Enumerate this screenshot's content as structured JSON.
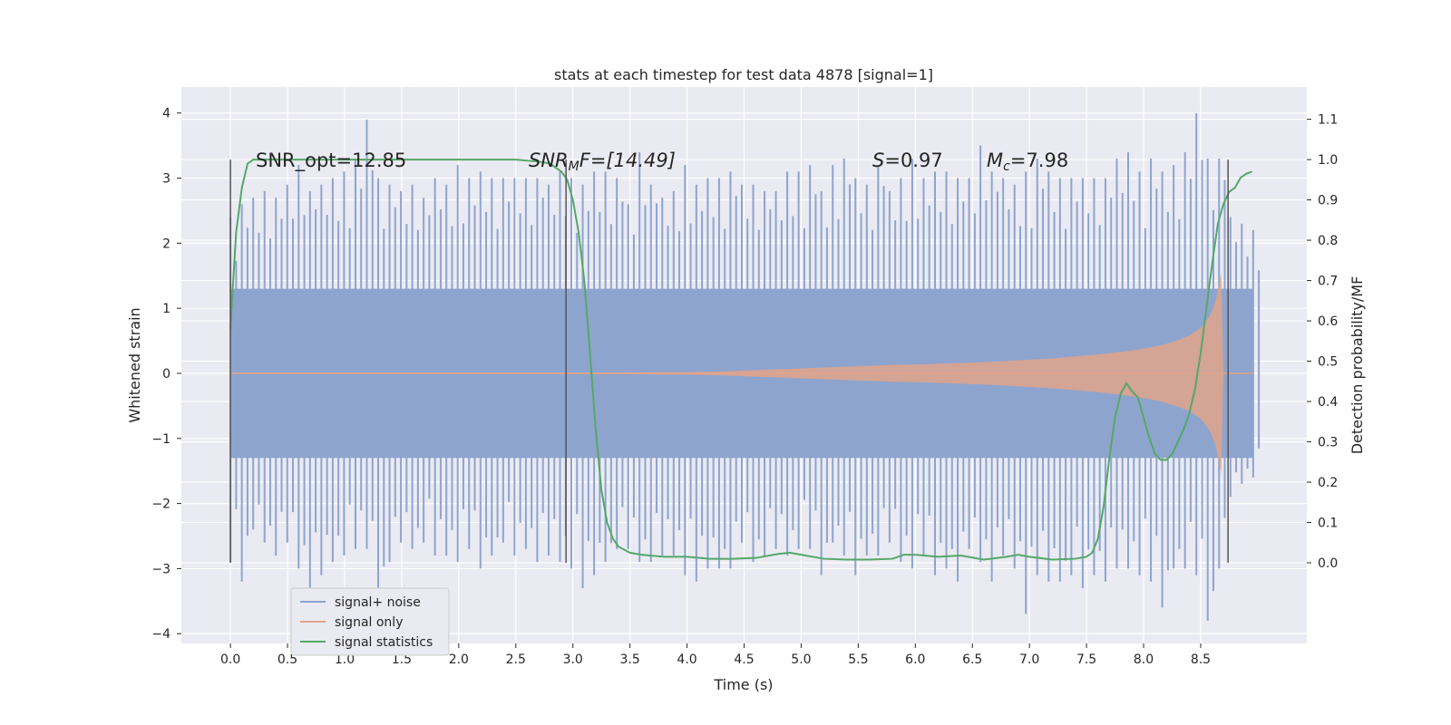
{
  "chart_data": {
    "type": "line",
    "title": "stats at each timestep for test data 4878 [signal=1]",
    "xlabel": "Time (s)",
    "ylabel": "Whitened strain",
    "y2label": "Detection probability/MF",
    "xlim": [
      -0.43,
      9.43
    ],
    "ylim": [
      -4.15,
      4.4
    ],
    "y2lim": [
      -0.2,
      1.18
    ],
    "xticks": [
      "0.0",
      "0.5",
      "1.0",
      "1.5",
      "2.0",
      "2.5",
      "3.0",
      "3.5",
      "4.0",
      "4.5",
      "5.0",
      "5.5",
      "6.0",
      "6.5",
      "7.0",
      "7.5",
      "8.0",
      "8.5"
    ],
    "xtick_values": [
      0,
      0.5,
      1,
      1.5,
      2,
      2.5,
      3,
      3.5,
      4,
      4.5,
      5,
      5.5,
      6,
      6.5,
      7,
      7.5,
      8,
      8.5
    ],
    "yticks": [
      "4",
      "3",
      "2",
      "1",
      "0",
      "−1",
      "−2",
      "−3",
      "−4"
    ],
    "ytick_values": [
      4,
      3,
      2,
      1,
      0,
      -1,
      -2,
      -3,
      -4
    ],
    "y2ticks": [
      "1.1",
      "1.0",
      "0.9",
      "0.8",
      "0.7",
      "0.6",
      "0.5",
      "0.4",
      "0.3",
      "0.2",
      "0.1",
      "0.0"
    ],
    "y2tick_values": [
      1.1,
      1.0,
      0.9,
      0.8,
      0.7,
      0.6,
      0.5,
      0.4,
      0.3,
      0.2,
      0.1,
      0.0
    ],
    "grid": true,
    "legend_position": "bottom-left",
    "annotations": {
      "snr_opt": "SNR_opt=12.85",
      "snr_mf_label": "SNR",
      "snr_mf_sub": "M",
      "snr_mf_rest": "F=[14.49]",
      "s_label": "S",
      "s_rest": "=0.97",
      "mc_label": "M",
      "mc_sub": "c",
      "mc_rest": "=7.98"
    },
    "vertical_markers": [
      0.0,
      2.94,
      8.74
    ],
    "noise": {
      "t_start": 0.0,
      "t_end": 8.96,
      "band": [
        -1.3,
        1.3
      ],
      "max": [
        2.4,
        2.6,
        2.7,
        2.8,
        2.7,
        2.9,
        3.2,
        2.8,
        2.9,
        3.0,
        3.1,
        3.3,
        3.9,
        3.0,
        2.9,
        2.8,
        2.9,
        2.7,
        3.0,
        2.9,
        3.2,
        3.0,
        3.1,
        3.0,
        3.0,
        3.0,
        3.0,
        3.0,
        2.9,
        3.1,
        3.0,
        2.9,
        3.1,
        3.1,
        3.0,
        2.6,
        3.4,
        2.9,
        2.7,
        2.8,
        3.2,
        2.9,
        3.0,
        3.0,
        3.1,
        2.9,
        2.9,
        2.8,
        2.8,
        3.1,
        3.1,
        3.2,
        2.8,
        3.2,
        3.3,
        3.0,
        2.9,
        3.2,
        2.8,
        3.0,
        3.3,
        3.0,
        3.1,
        3.1,
        3.0,
        3.0,
        3.5,
        3.1,
        3.0,
        2.9,
        3.1,
        3.3,
        3.1,
        3.0,
        3.0,
        3.0,
        3.0,
        3.0,
        3.3,
        3.4,
        3.1,
        3.3,
        3.1,
        3.2,
        3.4,
        4.0,
        3.3,
        3.3,
        2.4,
        2.3,
        2.2
      ],
      "min": [
        -2.9,
        -3.2,
        -2.4,
        -2.6,
        -2.8,
        -2.6,
        -3.0,
        -3.3,
        -3.1,
        -2.9,
        -2.8,
        -2.7,
        -2.7,
        -3.3,
        -2.9,
        -2.6,
        -2.7,
        -2.6,
        -2.8,
        -2.8,
        -2.9,
        -2.7,
        -3.0,
        -2.8,
        -2.6,
        -2.8,
        -2.7,
        -2.9,
        -2.8,
        -2.9,
        -3.0,
        -3.3,
        -3.1,
        -2.9,
        -2.7,
        -2.7,
        -2.9,
        -2.9,
        -2.8,
        -2.8,
        -3.1,
        -3.2,
        -3.0,
        -3.0,
        -3.0,
        -2.6,
        -2.9,
        -2.8,
        -2.7,
        -2.8,
        -2.7,
        -2.7,
        -3.1,
        -2.6,
        -2.8,
        -3.1,
        -2.8,
        -2.8,
        -2.6,
        -2.9,
        -3.0,
        -2.8,
        -3.1,
        -3.0,
        -3.2,
        -2.7,
        -2.9,
        -3.2,
        -2.8,
        -3.0,
        -3.7,
        -3.1,
        -3.2,
        -3.2,
        -3.1,
        -3.3,
        -3.1,
        -3.2,
        -3.0,
        -3.0,
        -3.1,
        -3.2,
        -3.6,
        -3.0,
        -3.0,
        -3.1,
        -3.8,
        -3.0,
        -1.9,
        -1.7,
        -1.6
      ]
    },
    "series": [
      {
        "name": "signal+ noise",
        "color": "#8da4ce"
      },
      {
        "name": "signal only",
        "color": "#e1a48a",
        "x": [
          0.0,
          0.5,
          1.0,
          1.5,
          2.0,
          2.5,
          3.0,
          3.5,
          4.0,
          4.3,
          4.6,
          4.9,
          5.2,
          5.5,
          5.8,
          6.1,
          6.4,
          6.7,
          7.0,
          7.2,
          7.4,
          7.6,
          7.8,
          8.0,
          8.15,
          8.3,
          8.4,
          8.5,
          8.58,
          8.63,
          8.66,
          8.68,
          8.7
        ],
        "amplitude": [
          0.01,
          0.01,
          0.01,
          0.01,
          0.01,
          0.01,
          0.01,
          0.015,
          0.02,
          0.03,
          0.05,
          0.07,
          0.09,
          0.11,
          0.13,
          0.14,
          0.16,
          0.18,
          0.21,
          0.23,
          0.26,
          0.29,
          0.33,
          0.38,
          0.43,
          0.51,
          0.58,
          0.7,
          0.88,
          1.1,
          1.35,
          1.55,
          0.02
        ]
      },
      {
        "name": "signal statistics",
        "color": "#55a868",
        "x": [
          0.0,
          0.02,
          0.05,
          0.1,
          0.15,
          0.2,
          0.3,
          0.5,
          1.0,
          1.5,
          2.0,
          2.5,
          2.7,
          2.8,
          2.9,
          2.95,
          3.0,
          3.05,
          3.1,
          3.15,
          3.2,
          3.25,
          3.3,
          3.35,
          3.4,
          3.5,
          3.6,
          3.8,
          4.0,
          4.2,
          4.4,
          4.6,
          4.8,
          4.9,
          5.0,
          5.2,
          5.4,
          5.6,
          5.8,
          5.9,
          6.0,
          6.2,
          6.4,
          6.6,
          6.8,
          6.9,
          7.0,
          7.2,
          7.4,
          7.5,
          7.55,
          7.6,
          7.65,
          7.7,
          7.75,
          7.8,
          7.85,
          7.9,
          7.95,
          8.0,
          8.05,
          8.1,
          8.15,
          8.2,
          8.25,
          8.3,
          8.35,
          8.4,
          8.45,
          8.5,
          8.55,
          8.6,
          8.65,
          8.7,
          8.75,
          8.8,
          8.85,
          8.9,
          8.95
        ],
        "y": [
          0.58,
          0.68,
          0.82,
          0.93,
          0.99,
          1.0,
          1.0,
          1.0,
          1.0,
          1.0,
          1.0,
          1.0,
          0.995,
          0.99,
          0.97,
          0.95,
          0.9,
          0.82,
          0.7,
          0.52,
          0.33,
          0.18,
          0.1,
          0.06,
          0.04,
          0.025,
          0.02,
          0.015,
          0.015,
          0.01,
          0.01,
          0.012,
          0.022,
          0.025,
          0.02,
          0.01,
          0.008,
          0.008,
          0.01,
          0.02,
          0.02,
          0.015,
          0.018,
          0.008,
          0.015,
          0.02,
          0.015,
          0.008,
          0.01,
          0.015,
          0.025,
          0.06,
          0.14,
          0.26,
          0.36,
          0.42,
          0.445,
          0.425,
          0.41,
          0.36,
          0.31,
          0.27,
          0.255,
          0.255,
          0.27,
          0.3,
          0.33,
          0.37,
          0.43,
          0.52,
          0.63,
          0.74,
          0.84,
          0.89,
          0.92,
          0.93,
          0.955,
          0.965,
          0.97
        ]
      }
    ]
  }
}
